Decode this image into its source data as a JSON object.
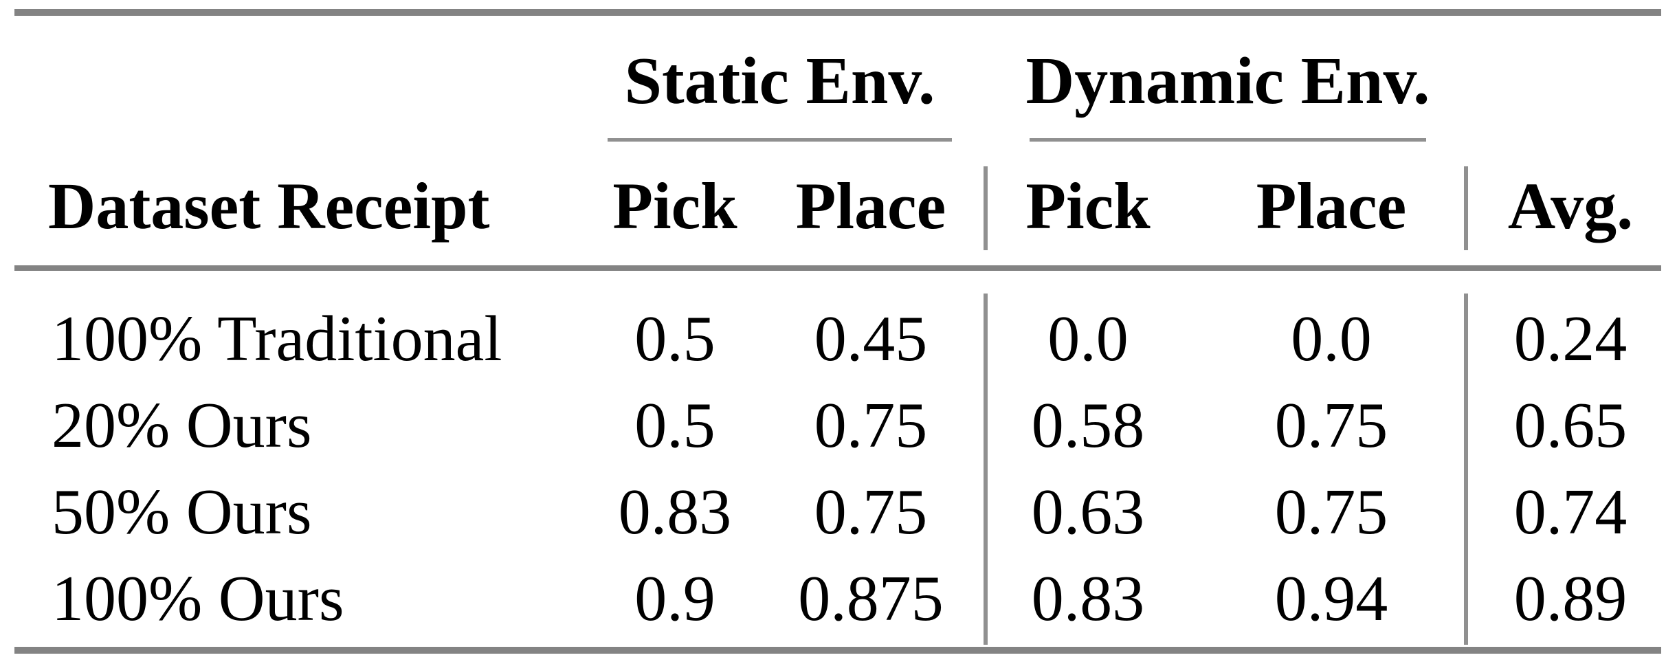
{
  "colors": {
    "bg": "#ffffff",
    "text": "#000000",
    "thick_rule": "#838383",
    "thin_rule": "#909090"
  },
  "table": {
    "groups": {
      "static": "Static Env.",
      "dynamic": "Dynamic Env."
    },
    "header": {
      "label": "Dataset Receipt",
      "static_pick": "Pick",
      "static_place": "Place",
      "dynamic_pick": "Pick",
      "dynamic_place": "Place",
      "avg": "Avg."
    },
    "rows": [
      {
        "label": "100% Traditional",
        "static_pick": "0.5",
        "static_place": "0.45",
        "dynamic_pick": "0.0",
        "dynamic_place": "0.0",
        "avg": "0.24"
      },
      {
        "label": "20% Ours",
        "static_pick": "0.5",
        "static_place": "0.75",
        "dynamic_pick": "0.58",
        "dynamic_place": "0.75",
        "avg": "0.65"
      },
      {
        "label": "50% Ours",
        "static_pick": "0.83",
        "static_place": "0.75",
        "dynamic_pick": "0.63",
        "dynamic_place": "0.75",
        "avg": "0.74"
      },
      {
        "label": "100% Ours",
        "static_pick": "0.9",
        "static_place": "0.875",
        "dynamic_pick": "0.83",
        "dynamic_place": "0.94",
        "avg": "0.89"
      }
    ]
  }
}
